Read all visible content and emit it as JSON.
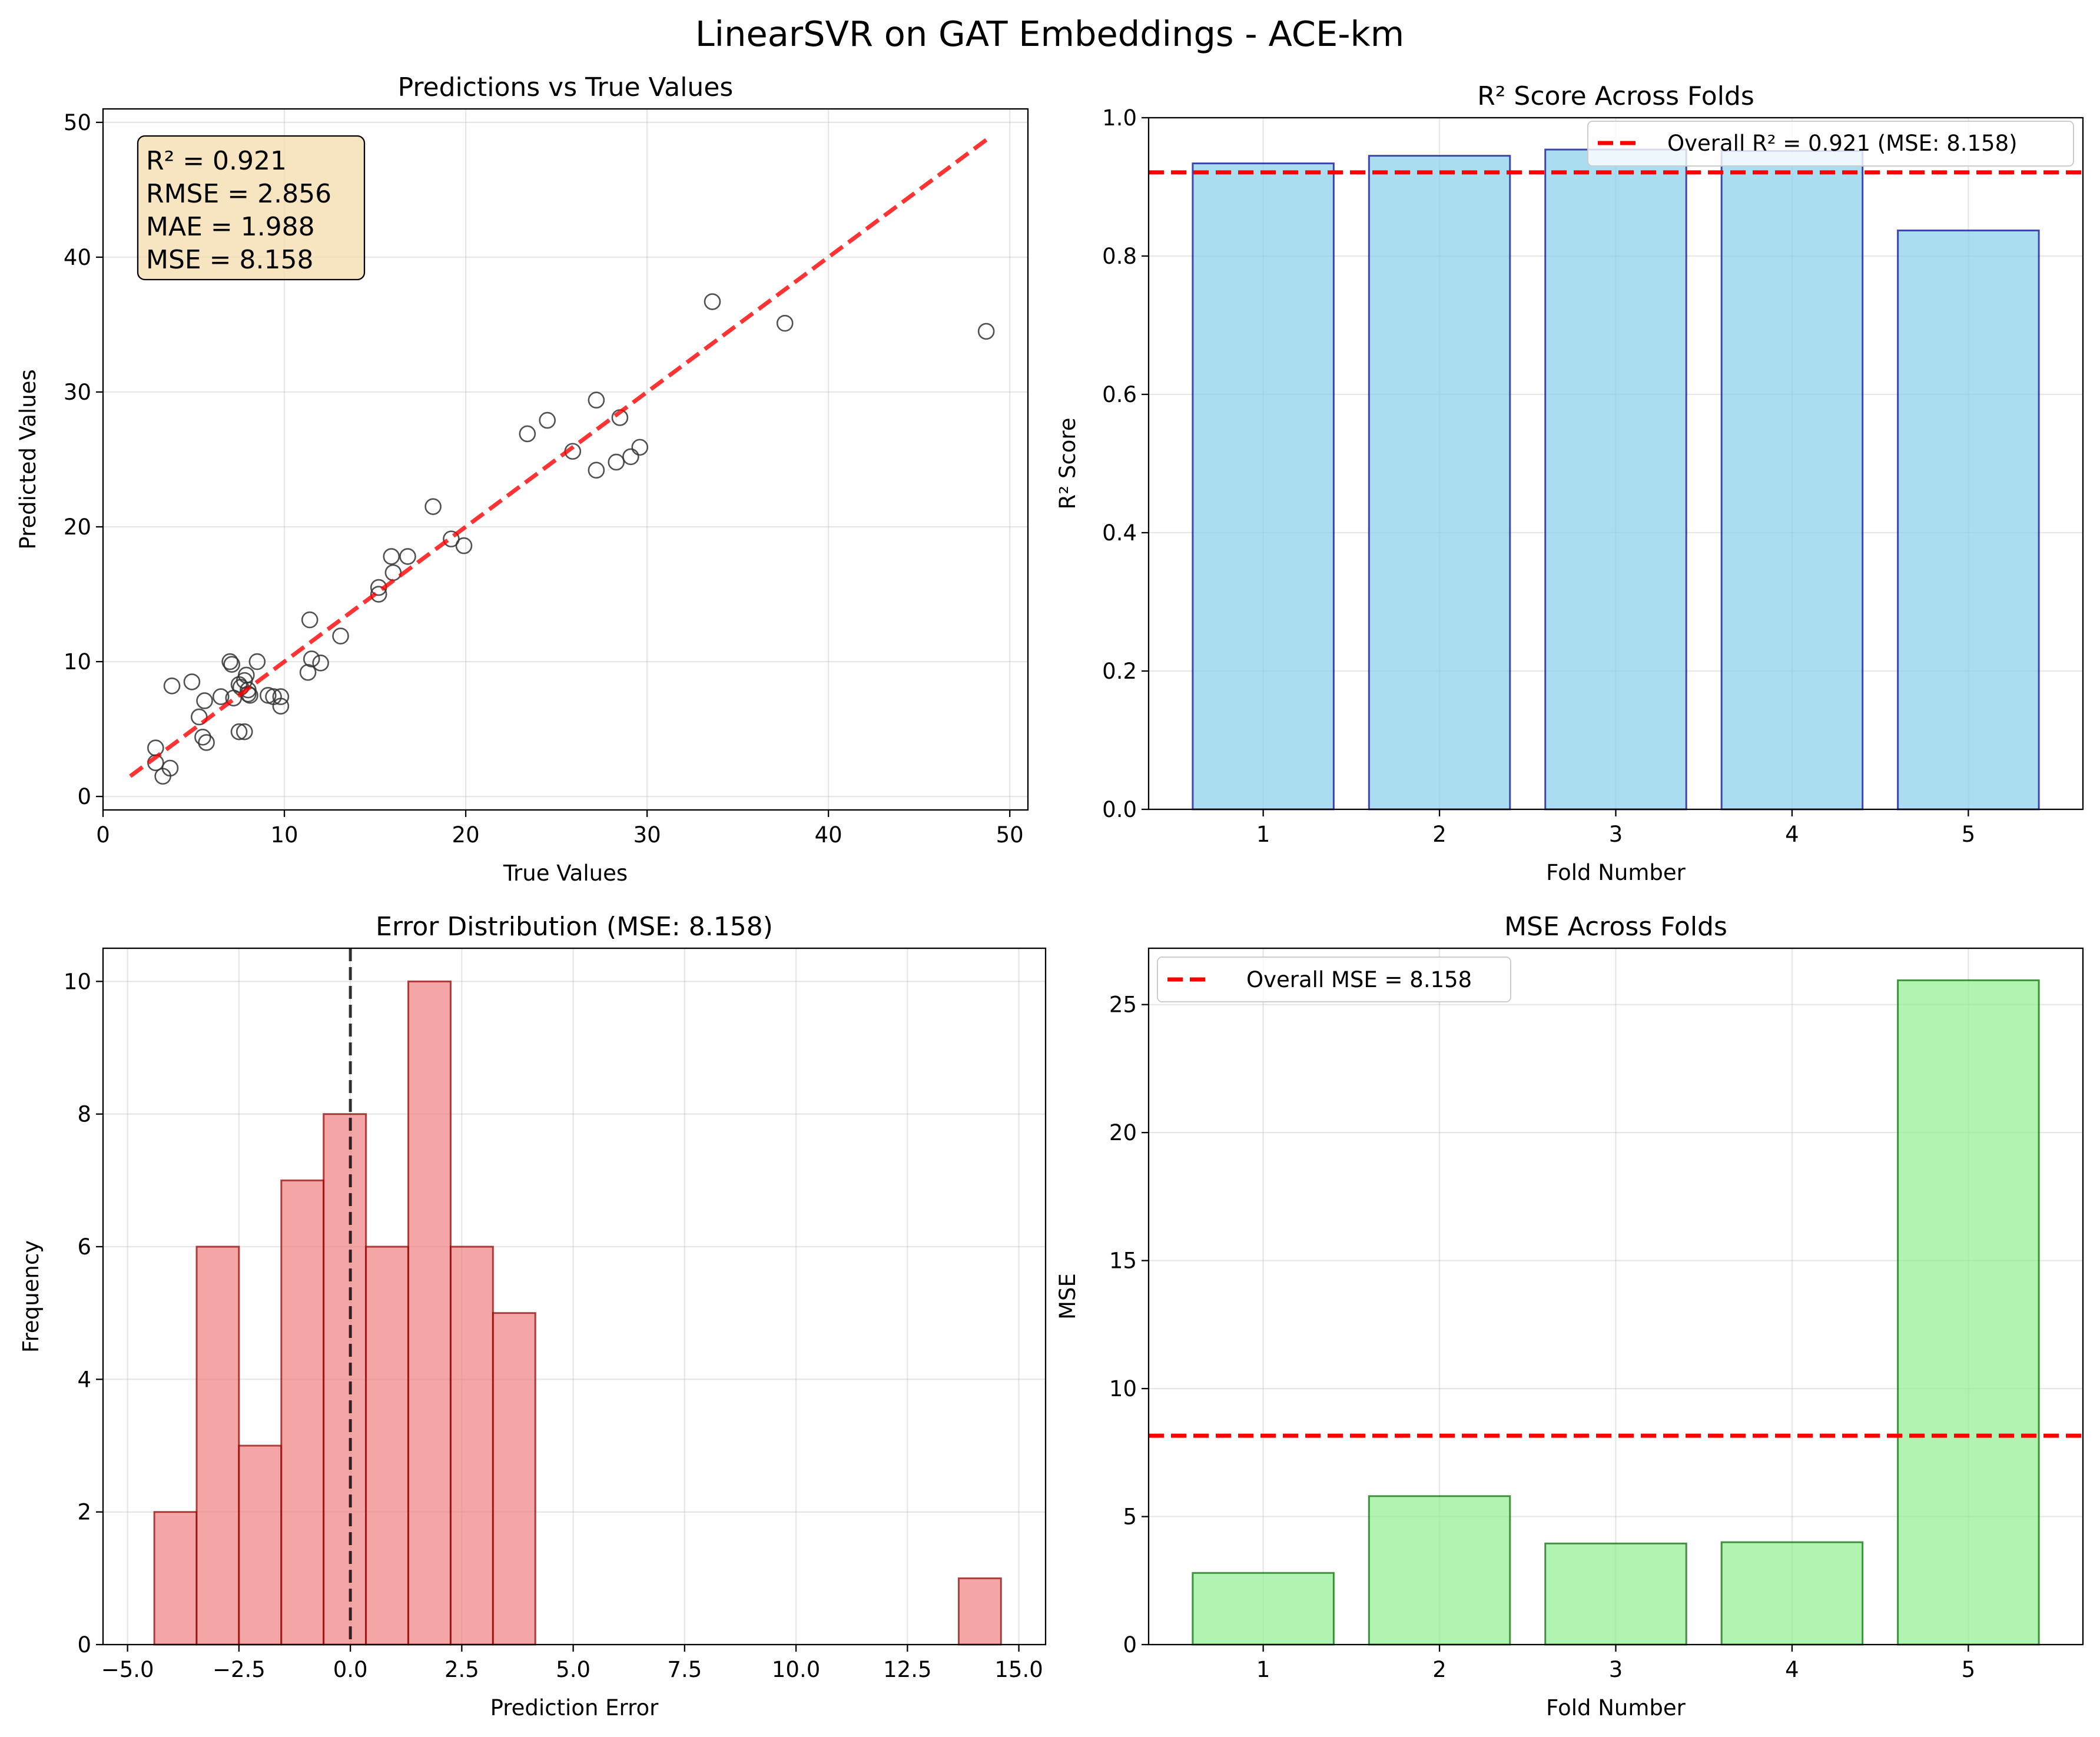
{
  "figure": {
    "suptitle": "LinearSVR on GAT Embeddings - ACE-km"
  },
  "chart_data": [
    {
      "type": "scatter",
      "title": "Predictions vs True Values",
      "xlabel": "True Values",
      "ylabel": "Predicted Values",
      "xlim": [
        0,
        51
      ],
      "ylim": [
        -1,
        51
      ],
      "xticks": [
        0,
        10,
        20,
        30,
        40,
        50
      ],
      "yticks": [
        0,
        10,
        20,
        30,
        40,
        50
      ],
      "grid": true,
      "points": [
        {
          "x": 2.9,
          "y": 3.6
        },
        {
          "x": 2.9,
          "y": 2.5
        },
        {
          "x": 3.3,
          "y": 1.5
        },
        {
          "x": 3.7,
          "y": 2.1
        },
        {
          "x": 3.8,
          "y": 8.2
        },
        {
          "x": 4.9,
          "y": 8.5
        },
        {
          "x": 5.3,
          "y": 5.9
        },
        {
          "x": 5.6,
          "y": 7.1
        },
        {
          "x": 5.5,
          "y": 4.4
        },
        {
          "x": 5.7,
          "y": 4.0
        },
        {
          "x": 6.5,
          "y": 7.4
        },
        {
          "x": 7.0,
          "y": 10.0
        },
        {
          "x": 7.1,
          "y": 9.8
        },
        {
          "x": 7.2,
          "y": 7.3
        },
        {
          "x": 7.5,
          "y": 8.3
        },
        {
          "x": 7.6,
          "y": 8.1
        },
        {
          "x": 7.8,
          "y": 8.6
        },
        {
          "x": 7.9,
          "y": 9.0
        },
        {
          "x": 8.0,
          "y": 7.6
        },
        {
          "x": 8.0,
          "y": 7.9
        },
        {
          "x": 8.1,
          "y": 7.5
        },
        {
          "x": 7.5,
          "y": 4.8
        },
        {
          "x": 7.8,
          "y": 4.8
        },
        {
          "x": 8.5,
          "y": 10.0
        },
        {
          "x": 9.1,
          "y": 7.5
        },
        {
          "x": 9.4,
          "y": 7.4
        },
        {
          "x": 9.8,
          "y": 7.4
        },
        {
          "x": 9.8,
          "y": 6.7
        },
        {
          "x": 11.3,
          "y": 9.2
        },
        {
          "x": 11.4,
          "y": 13.1
        },
        {
          "x": 11.5,
          "y": 10.2
        },
        {
          "x": 12.0,
          "y": 9.9
        },
        {
          "x": 13.1,
          "y": 11.9
        },
        {
          "x": 15.2,
          "y": 15.0
        },
        {
          "x": 15.2,
          "y": 15.5
        },
        {
          "x": 15.9,
          "y": 17.8
        },
        {
          "x": 16.0,
          "y": 16.6
        },
        {
          "x": 16.8,
          "y": 17.8
        },
        {
          "x": 18.2,
          "y": 21.5
        },
        {
          "x": 19.2,
          "y": 19.1
        },
        {
          "x": 19.9,
          "y": 18.6
        },
        {
          "x": 23.4,
          "y": 26.9
        },
        {
          "x": 24.5,
          "y": 27.9
        },
        {
          "x": 25.9,
          "y": 25.6
        },
        {
          "x": 27.2,
          "y": 29.4
        },
        {
          "x": 27.2,
          "y": 24.2
        },
        {
          "x": 28.3,
          "y": 24.8
        },
        {
          "x": 28.5,
          "y": 28.1
        },
        {
          "x": 29.1,
          "y": 25.2
        },
        {
          "x": 29.6,
          "y": 25.9
        },
        {
          "x": 33.6,
          "y": 36.7
        },
        {
          "x": 37.6,
          "y": 35.1
        },
        {
          "x": 48.7,
          "y": 34.5
        }
      ],
      "reference_line": {
        "from": [
          1.5,
          1.5
        ],
        "to": [
          48.7,
          48.7
        ],
        "color": "#ff0000",
        "style": "dashed"
      },
      "stats_box": [
        "R² = 0.921",
        "RMSE = 2.856",
        "MAE = 1.988",
        "MSE = 8.158"
      ],
      "colors": {
        "marker_edge": "#333333",
        "box_fill": "#f5deb3"
      }
    },
    {
      "type": "bar",
      "title": "R² Score Across Folds",
      "xlabel": "Fold Number",
      "ylabel": "R² Score",
      "categories": [
        "1",
        "2",
        "3",
        "4",
        "5"
      ],
      "values": [
        0.934,
        0.945,
        0.954,
        0.952,
        0.837
      ],
      "ylim": [
        0,
        1.0
      ],
      "yticks": [
        "0.0",
        "0.2",
        "0.4",
        "0.6",
        "0.8",
        "1.0"
      ],
      "reference_line": {
        "y": 0.921,
        "color": "#ff0000",
        "style": "dashed"
      },
      "legend": {
        "label": "Overall R² = 0.921 (MSE: 8.158)",
        "position": "upper right"
      },
      "colors": {
        "bar_fill": "#87ceeb",
        "bar_edge": "#00008b"
      },
      "grid": true
    },
    {
      "type": "histogram",
      "title": "Error Distribution (MSE: 8.158)",
      "xlabel": "Prediction Error",
      "ylabel": "Frequency",
      "bin_edges": [
        -4.4,
        -3.45,
        -2.5,
        -1.55,
        -0.6,
        0.35,
        1.3,
        2.25,
        3.2,
        4.15,
        5.1,
        6.05,
        7.0,
        7.95,
        8.9,
        9.85,
        10.8,
        11.75,
        12.7,
        13.65,
        14.6
      ],
      "counts": [
        2,
        6,
        3,
        7,
        8,
        6,
        10,
        6,
        5,
        0,
        0,
        0,
        0,
        0,
        0,
        0,
        0,
        0,
        0,
        1
      ],
      "xlim": [
        -5.55,
        15.6
      ],
      "ylim": [
        0,
        10.5
      ],
      "xticks": [
        "−5.0",
        "−2.5",
        "0.0",
        "2.5",
        "5.0",
        "7.5",
        "10.0",
        "12.5",
        "15.0"
      ],
      "yticks": [
        "0",
        "2",
        "4",
        "6",
        "8",
        "10"
      ],
      "reference_line": {
        "x": 0,
        "color": "#000000",
        "style": "dashed"
      },
      "colors": {
        "bar_fill": "#f08080",
        "bar_edge": "#8b0000"
      },
      "grid": true
    },
    {
      "type": "bar",
      "title": "MSE Across Folds",
      "xlabel": "Fold Number",
      "ylabel": "MSE",
      "categories": [
        "1",
        "2",
        "3",
        "4",
        "5"
      ],
      "values": [
        2.8,
        5.8,
        3.95,
        4.0,
        25.95
      ],
      "ylim": [
        0,
        27.2
      ],
      "yticks": [
        "0",
        "5",
        "10",
        "15",
        "20",
        "25"
      ],
      "reference_line": {
        "y": 8.158,
        "color": "#ff0000",
        "style": "dashed"
      },
      "legend": {
        "label": "Overall MSE = 8.158",
        "position": "upper left"
      },
      "colors": {
        "bar_fill": "#90ee90",
        "bar_edge": "#006400"
      },
      "grid": true
    }
  ]
}
